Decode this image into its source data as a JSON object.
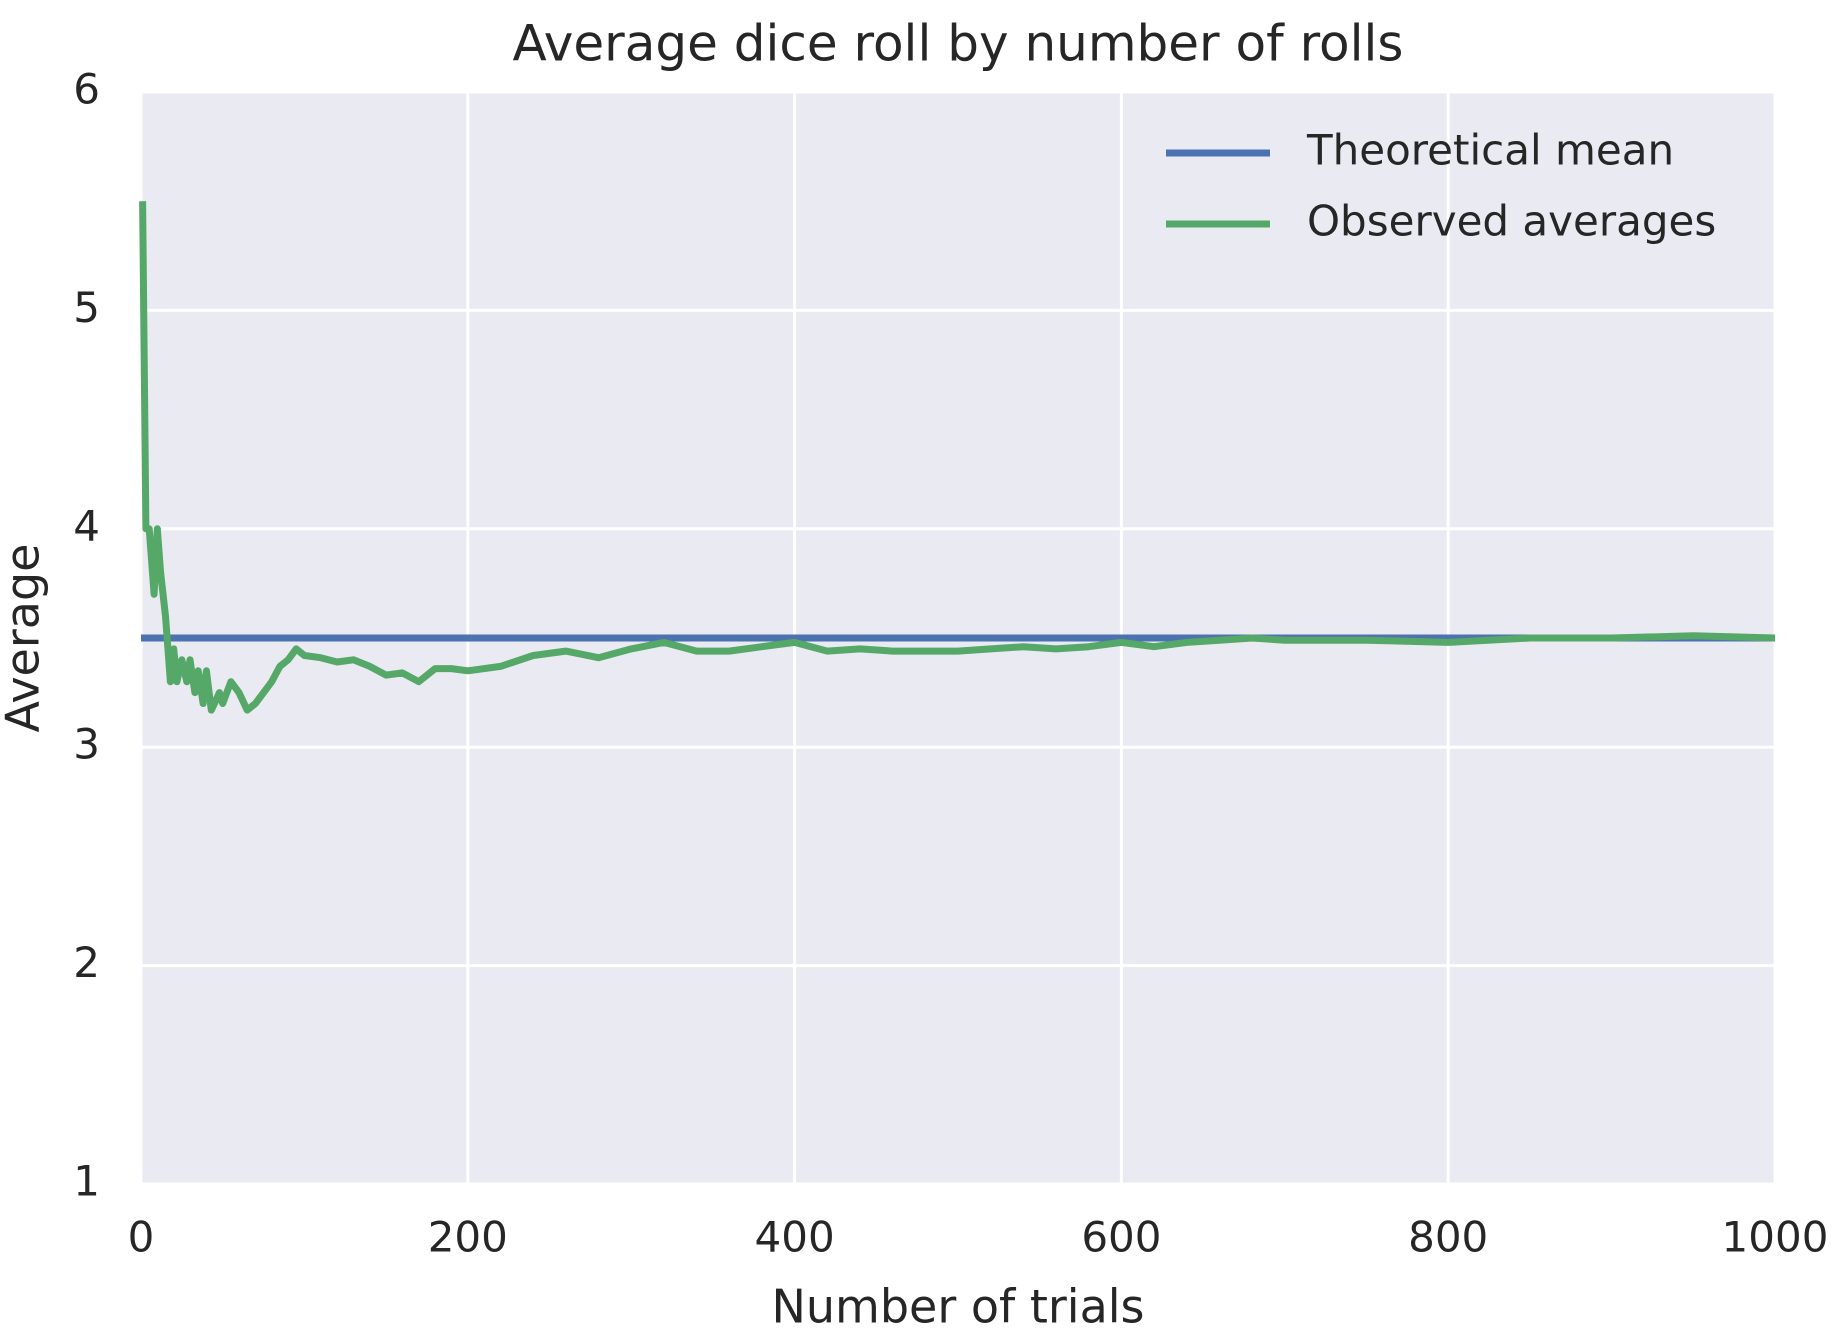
{
  "chart_data": {
    "type": "line",
    "title": "Average dice roll by number of rolls",
    "xlabel": "Number of trials",
    "ylabel": "Average",
    "x": [
      1,
      3,
      5,
      8,
      10,
      12,
      15,
      18,
      20,
      22,
      25,
      28,
      30,
      33,
      35,
      38,
      40,
      43,
      45,
      48,
      50,
      55,
      60,
      65,
      70,
      75,
      80,
      85,
      90,
      95,
      100,
      110,
      120,
      130,
      140,
      150,
      160,
      170,
      180,
      190,
      200,
      220,
      240,
      260,
      280,
      300,
      320,
      340,
      360,
      380,
      400,
      420,
      440,
      460,
      480,
      500,
      520,
      540,
      560,
      580,
      600,
      620,
      640,
      660,
      680,
      700,
      750,
      800,
      850,
      900,
      950,
      1000
    ],
    "series": [
      {
        "name": "Theoretical mean",
        "color": "#4c72b0",
        "x": [
          0,
          1000
        ],
        "values": [
          3.5,
          3.5
        ]
      },
      {
        "name": "Observed averages",
        "color": "#55a868",
        "values": [
          5.5,
          4.0,
          4.0,
          3.7,
          4.0,
          3.8,
          3.6,
          3.3,
          3.45,
          3.3,
          3.4,
          3.3,
          3.4,
          3.25,
          3.35,
          3.2,
          3.35,
          3.17,
          3.2,
          3.25,
          3.2,
          3.3,
          3.25,
          3.17,
          3.2,
          3.25,
          3.3,
          3.37,
          3.4,
          3.45,
          3.42,
          3.41,
          3.39,
          3.4,
          3.37,
          3.33,
          3.34,
          3.3,
          3.36,
          3.36,
          3.35,
          3.37,
          3.42,
          3.44,
          3.41,
          3.45,
          3.48,
          3.44,
          3.44,
          3.46,
          3.48,
          3.44,
          3.45,
          3.44,
          3.44,
          3.44,
          3.45,
          3.46,
          3.45,
          3.46,
          3.48,
          3.46,
          3.48,
          3.49,
          3.5,
          3.49,
          3.49,
          3.48,
          3.5,
          3.5,
          3.51,
          3.5
        ]
      }
    ],
    "xlim": [
      0,
      1000
    ],
    "xticks": [
      0,
      200,
      400,
      600,
      800,
      1000
    ],
    "ylim": [
      1,
      6
    ],
    "yticks": [
      1,
      2,
      3,
      4,
      5,
      6
    ],
    "grid": true,
    "legend": "upper right",
    "background": "#eaeaf2"
  }
}
